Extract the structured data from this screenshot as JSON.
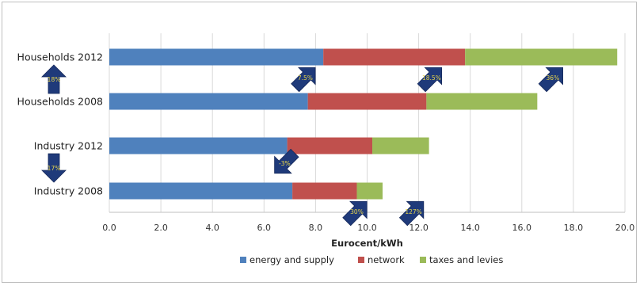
{
  "chart_data": {
    "type": "bar",
    "orientation": "horizontal",
    "stacked": true,
    "categories": [
      "Households 2012",
      "Households 2008",
      "Industry 2012",
      "Industry 2008"
    ],
    "series": [
      {
        "name": "energy and supply",
        "color": "#4f81bd",
        "values": [
          8.3,
          7.7,
          6.9,
          7.1
        ]
      },
      {
        "name": "network",
        "color": "#c0504d",
        "values": [
          5.5,
          4.6,
          3.3,
          2.5
        ]
      },
      {
        "name": "taxes and levies",
        "color": "#9bbb59",
        "values": [
          5.9,
          4.3,
          2.2,
          1.0
        ]
      }
    ],
    "title": "",
    "xlabel": "Eurocent/kWh",
    "ylabel": "",
    "xlim": [
      0,
      20
    ],
    "xticks": [
      "0.0",
      "2.0",
      "4.0",
      "6.0",
      "8.0",
      "10.0",
      "12.0",
      "14.0",
      "16.0",
      "18.0",
      "20.0"
    ],
    "grid": "vertical",
    "legend_position": "bottom",
    "annotations": [
      {
        "text": "18%",
        "kind": "arrow-up",
        "near": "Households",
        "x": -2.2,
        "category_gap": "Households"
      },
      {
        "text": "7.5%",
        "kind": "arrow-up-right",
        "series": "energy and supply",
        "x": 7.6,
        "category": "Households 2012"
      },
      {
        "text": "18.5%",
        "kind": "arrow-up-right",
        "series": "network",
        "x": 12.5,
        "category": "Households 2012"
      },
      {
        "text": "36%",
        "kind": "arrow-up-right",
        "series": "taxes and levies",
        "x": 17.2,
        "category": "Households 2012"
      },
      {
        "text": "17%",
        "kind": "arrow-down",
        "near": "Industry",
        "x": -2.2,
        "category_gap": "Industry"
      },
      {
        "text": "-3%",
        "kind": "arrow-down-left",
        "series": "energy and supply",
        "x": 6.8,
        "category": "Industry 2012"
      },
      {
        "text": "30%",
        "kind": "arrow-up-right",
        "series": "network",
        "x": 9.6,
        "category": "Industry 2008"
      },
      {
        "text": "127%",
        "kind": "arrow-up-right",
        "series": "taxes and levies",
        "x": 11.8,
        "category": "Industry 2008"
      }
    ]
  }
}
